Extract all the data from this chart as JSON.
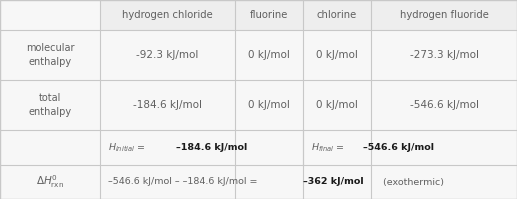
{
  "col_headers": [
    "hydrogen chloride",
    "fluorine",
    "chlorine",
    "hydrogen fluoride"
  ],
  "cell_data": [
    [
      "-92.3 kJ/mol",
      "0 kJ/mol",
      "0 kJ/mol",
      "-273.3 kJ/mol"
    ],
    [
      "-184.6 kJ/mol",
      "0 kJ/mol",
      "0 kJ/mol",
      "-546.6 kJ/mol"
    ]
  ],
  "bg_color": "#f7f7f7",
  "grid_color": "#c8c8c8",
  "text_color": "#606060",
  "bold_color": "#1a1a1a",
  "header_bg": "#eeeeee"
}
